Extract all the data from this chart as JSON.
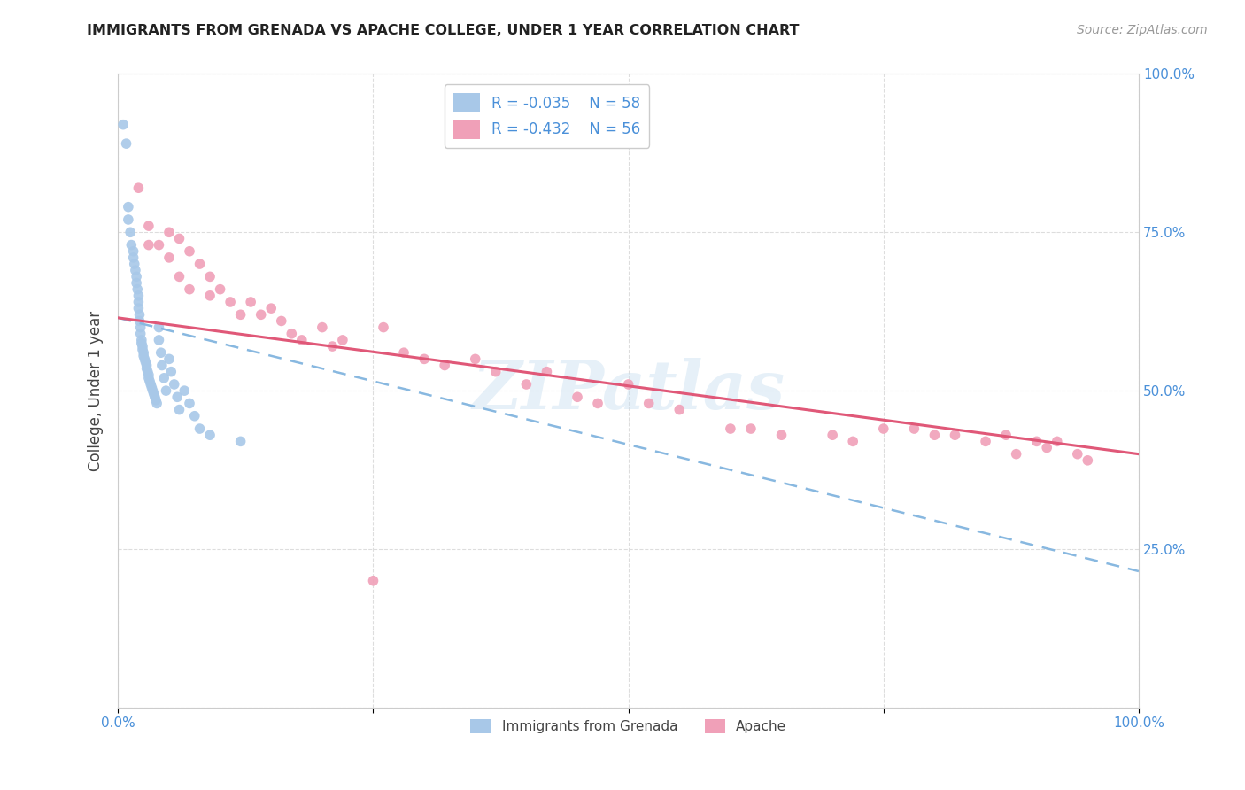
{
  "title": "IMMIGRANTS FROM GRENADA VS APACHE COLLEGE, UNDER 1 YEAR CORRELATION CHART",
  "source": "Source: ZipAtlas.com",
  "ylabel": "College, Under 1 year",
  "xlim": [
    0.0,
    1.0
  ],
  "ylim": [
    0.0,
    1.0
  ],
  "legend_r1": "R = -0.035",
  "legend_n1": "N = 58",
  "legend_r2": "R = -0.432",
  "legend_n2": "N = 56",
  "color_blue": "#a8c8e8",
  "color_pink": "#f0a0b8",
  "line_blue_color": "#88b8e0",
  "line_pink_color": "#e05878",
  "watermark": "ZIPatlas",
  "blue_scatter_x": [
    0.005,
    0.008,
    0.01,
    0.01,
    0.012,
    0.013,
    0.015,
    0.015,
    0.016,
    0.017,
    0.018,
    0.018,
    0.019,
    0.02,
    0.02,
    0.02,
    0.021,
    0.021,
    0.022,
    0.022,
    0.023,
    0.023,
    0.024,
    0.024,
    0.025,
    0.025,
    0.026,
    0.027,
    0.028,
    0.028,
    0.029,
    0.03,
    0.03,
    0.031,
    0.032,
    0.033,
    0.034,
    0.035,
    0.036,
    0.037,
    0.038,
    0.04,
    0.04,
    0.042,
    0.043,
    0.045,
    0.047,
    0.05,
    0.052,
    0.055,
    0.058,
    0.06,
    0.065,
    0.07,
    0.075,
    0.08,
    0.09,
    0.12
  ],
  "blue_scatter_y": [
    0.92,
    0.89,
    0.79,
    0.77,
    0.75,
    0.73,
    0.72,
    0.71,
    0.7,
    0.69,
    0.68,
    0.67,
    0.66,
    0.65,
    0.64,
    0.63,
    0.62,
    0.61,
    0.6,
    0.59,
    0.58,
    0.575,
    0.57,
    0.565,
    0.56,
    0.555,
    0.55,
    0.545,
    0.54,
    0.535,
    0.53,
    0.525,
    0.52,
    0.515,
    0.51,
    0.505,
    0.5,
    0.495,
    0.49,
    0.485,
    0.48,
    0.6,
    0.58,
    0.56,
    0.54,
    0.52,
    0.5,
    0.55,
    0.53,
    0.51,
    0.49,
    0.47,
    0.5,
    0.48,
    0.46,
    0.44,
    0.43,
    0.42
  ],
  "pink_scatter_x": [
    0.02,
    0.03,
    0.03,
    0.04,
    0.05,
    0.05,
    0.06,
    0.06,
    0.07,
    0.07,
    0.08,
    0.09,
    0.09,
    0.1,
    0.11,
    0.12,
    0.13,
    0.14,
    0.15,
    0.16,
    0.17,
    0.18,
    0.2,
    0.21,
    0.22,
    0.25,
    0.26,
    0.28,
    0.3,
    0.32,
    0.35,
    0.37,
    0.4,
    0.42,
    0.45,
    0.47,
    0.5,
    0.52,
    0.55,
    0.6,
    0.62,
    0.65,
    0.7,
    0.72,
    0.75,
    0.78,
    0.8,
    0.82,
    0.85,
    0.87,
    0.88,
    0.9,
    0.91,
    0.92,
    0.94,
    0.95
  ],
  "pink_scatter_y": [
    0.82,
    0.76,
    0.73,
    0.73,
    0.75,
    0.71,
    0.74,
    0.68,
    0.72,
    0.66,
    0.7,
    0.68,
    0.65,
    0.66,
    0.64,
    0.62,
    0.64,
    0.62,
    0.63,
    0.61,
    0.59,
    0.58,
    0.6,
    0.57,
    0.58,
    0.2,
    0.6,
    0.56,
    0.55,
    0.54,
    0.55,
    0.53,
    0.51,
    0.53,
    0.49,
    0.48,
    0.51,
    0.48,
    0.47,
    0.44,
    0.44,
    0.43,
    0.43,
    0.42,
    0.44,
    0.44,
    0.43,
    0.43,
    0.42,
    0.43,
    0.4,
    0.42,
    0.41,
    0.42,
    0.4,
    0.39
  ],
  "blue_line_x0": 0.0,
  "blue_line_x1": 0.15,
  "blue_line_y0": 0.615,
  "blue_line_y1": 0.555,
  "pink_line_x0": 0.0,
  "pink_line_x1": 1.0,
  "pink_line_y0": 0.615,
  "pink_line_y1": 0.4,
  "bottom_legend_label1": "Immigrants from Grenada",
  "bottom_legend_label2": "Apache"
}
